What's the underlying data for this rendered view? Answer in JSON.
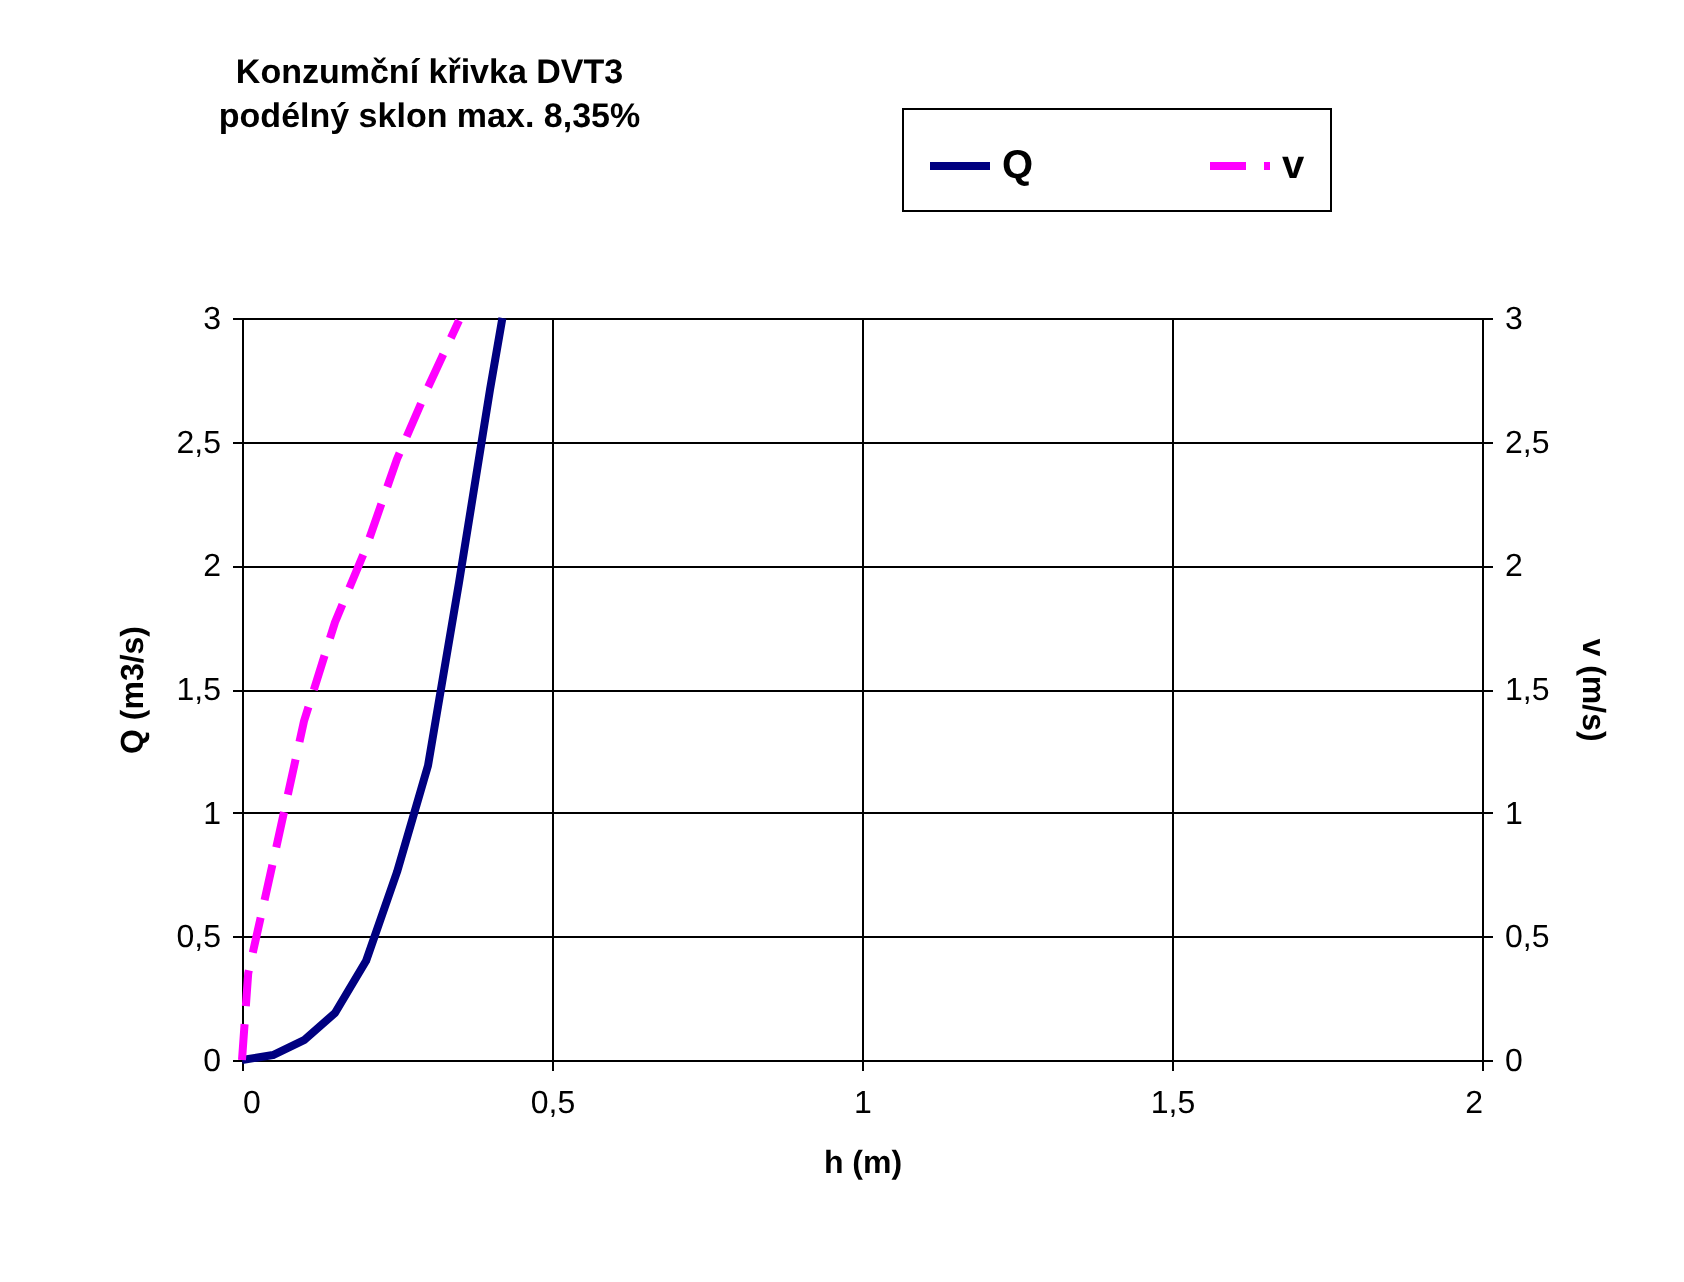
{
  "chart_data": {
    "type": "line",
    "title": [
      "Konzumční křivka DVT3",
      "podélný sklon max. 8,35%"
    ],
    "xlabel": "h (m)",
    "ylabel": "Q (m3/s)",
    "y2label": "v (m/s)",
    "legend": "top right",
    "grid": true,
    "marker": "none",
    "xlim": [
      0,
      2
    ],
    "xticks": [
      0,
      {
        "value": 0.5,
        "label": "0,5"
      },
      1,
      {
        "value": 1.5,
        "label": "1,5"
      },
      2
    ],
    "ylim": [
      0,
      3
    ],
    "yticks": [
      0,
      {
        "value": 0.5,
        "label": "0,5"
      },
      1,
      {
        "value": 1.5,
        "label": "1,5"
      },
      2,
      {
        "value": 2.5,
        "label": "2,5"
      },
      3
    ],
    "y2lim": [
      0,
      3
    ],
    "y2ticks": [
      0,
      {
        "value": 0.5,
        "label": "0,5"
      },
      1,
      {
        "value": 1.5,
        "label": "1,5"
      },
      2,
      {
        "value": 2.5,
        "label": "2,5"
      },
      3
    ],
    "series": [
      {
        "name": "Q",
        "color": "#000080",
        "line_style": "solid",
        "x": [
          0,
          0.05,
          0.1,
          0.15,
          0.2,
          0.25,
          0.3,
          0.35,
          0.4,
          0.42
        ],
        "values": [
          0,
          0.02,
          0.08,
          0.19,
          0.4,
          0.76,
          1.19,
          1.93,
          2.71,
          3.0
        ]
      },
      {
        "name": "v",
        "color": "#ff00ff",
        "line_style": "dashed",
        "axis": "y2",
        "x": [
          0,
          0.01,
          0.05,
          0.1,
          0.15,
          0.2,
          0.25,
          0.3,
          0.35
        ],
        "values": [
          0,
          0.35,
          0.8,
          1.37,
          1.77,
          2.07,
          2.43,
          2.72,
          2.99
        ]
      }
    ]
  }
}
